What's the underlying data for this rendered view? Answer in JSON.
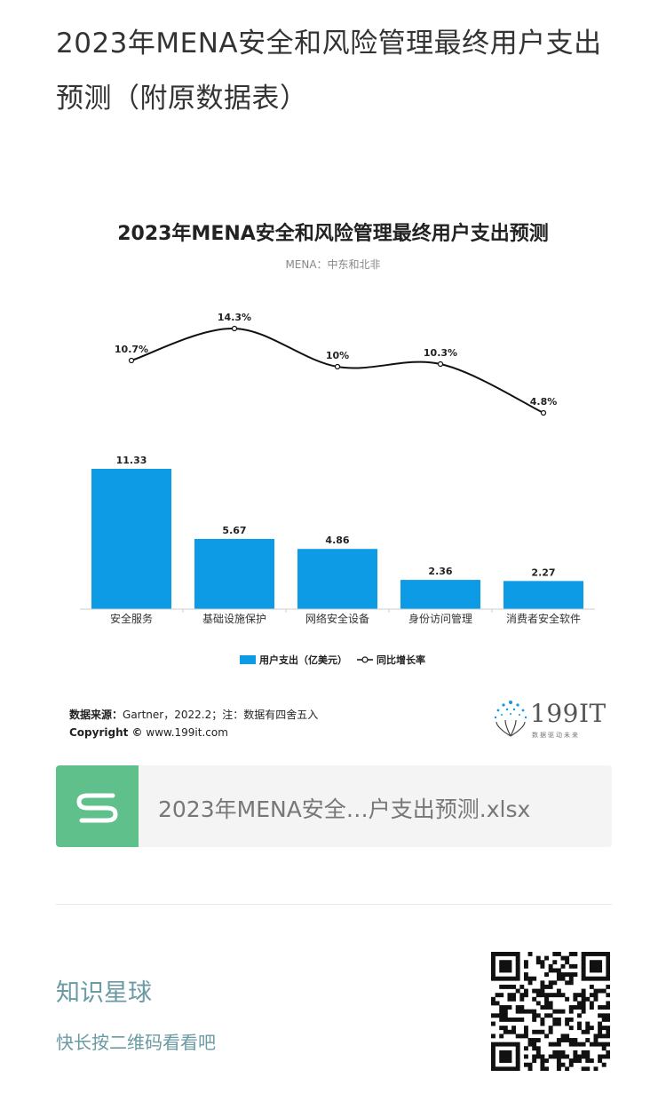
{
  "article": {
    "title": "2023年MENA安全和风险管理最终用户支出预测（附原数据表）"
  },
  "chart_data": {
    "type": "bar",
    "title": "2023年MENA安全和风险管理最终用户支出预测",
    "subtitle": "MENA：中东和北非",
    "categories": [
      "安全服务",
      "基础设施保护",
      "网络安全设备",
      "身份访问管理",
      "消费者安全软件"
    ],
    "series": [
      {
        "name": "用户支出（亿美元）",
        "type": "bar",
        "values": [
          11.33,
          5.67,
          4.86,
          2.36,
          2.27
        ],
        "labels": [
          "11.33",
          "5.67",
          "4.86",
          "2.36",
          "2.27"
        ]
      },
      {
        "name": "同比增长率",
        "type": "line",
        "values": [
          10.7,
          14.3,
          10.0,
          10.3,
          4.8
        ],
        "labels": [
          "10.7%",
          "14.3%",
          "10%",
          "10.3%",
          "4.8%"
        ]
      }
    ],
    "bar_color": "#0c9be4",
    "line_color": "#111111",
    "legend_position": "bottom",
    "grid": false,
    "legend": {
      "bar_label": "用户支出（亿美元）",
      "line_label": "同比增长率"
    }
  },
  "source": {
    "label": "数据来源：",
    "text": "Gartner，2022.2；注：数据有四舍五入",
    "copyright_label": "Copyright ©",
    "copyright_site": "www.199it.com"
  },
  "logo": {
    "text": "199IT",
    "sub": "数据驱动未来"
  },
  "attachment": {
    "icon": "spreadsheet-s-icon",
    "icon_color": "#5fc08c",
    "file_name": "2023年MENA安全…户支出预测.xlsx"
  },
  "promo": {
    "title": "知识星球",
    "subtitle": "快长按二维码看看吧",
    "qr_icon": "qr-code-icon"
  }
}
